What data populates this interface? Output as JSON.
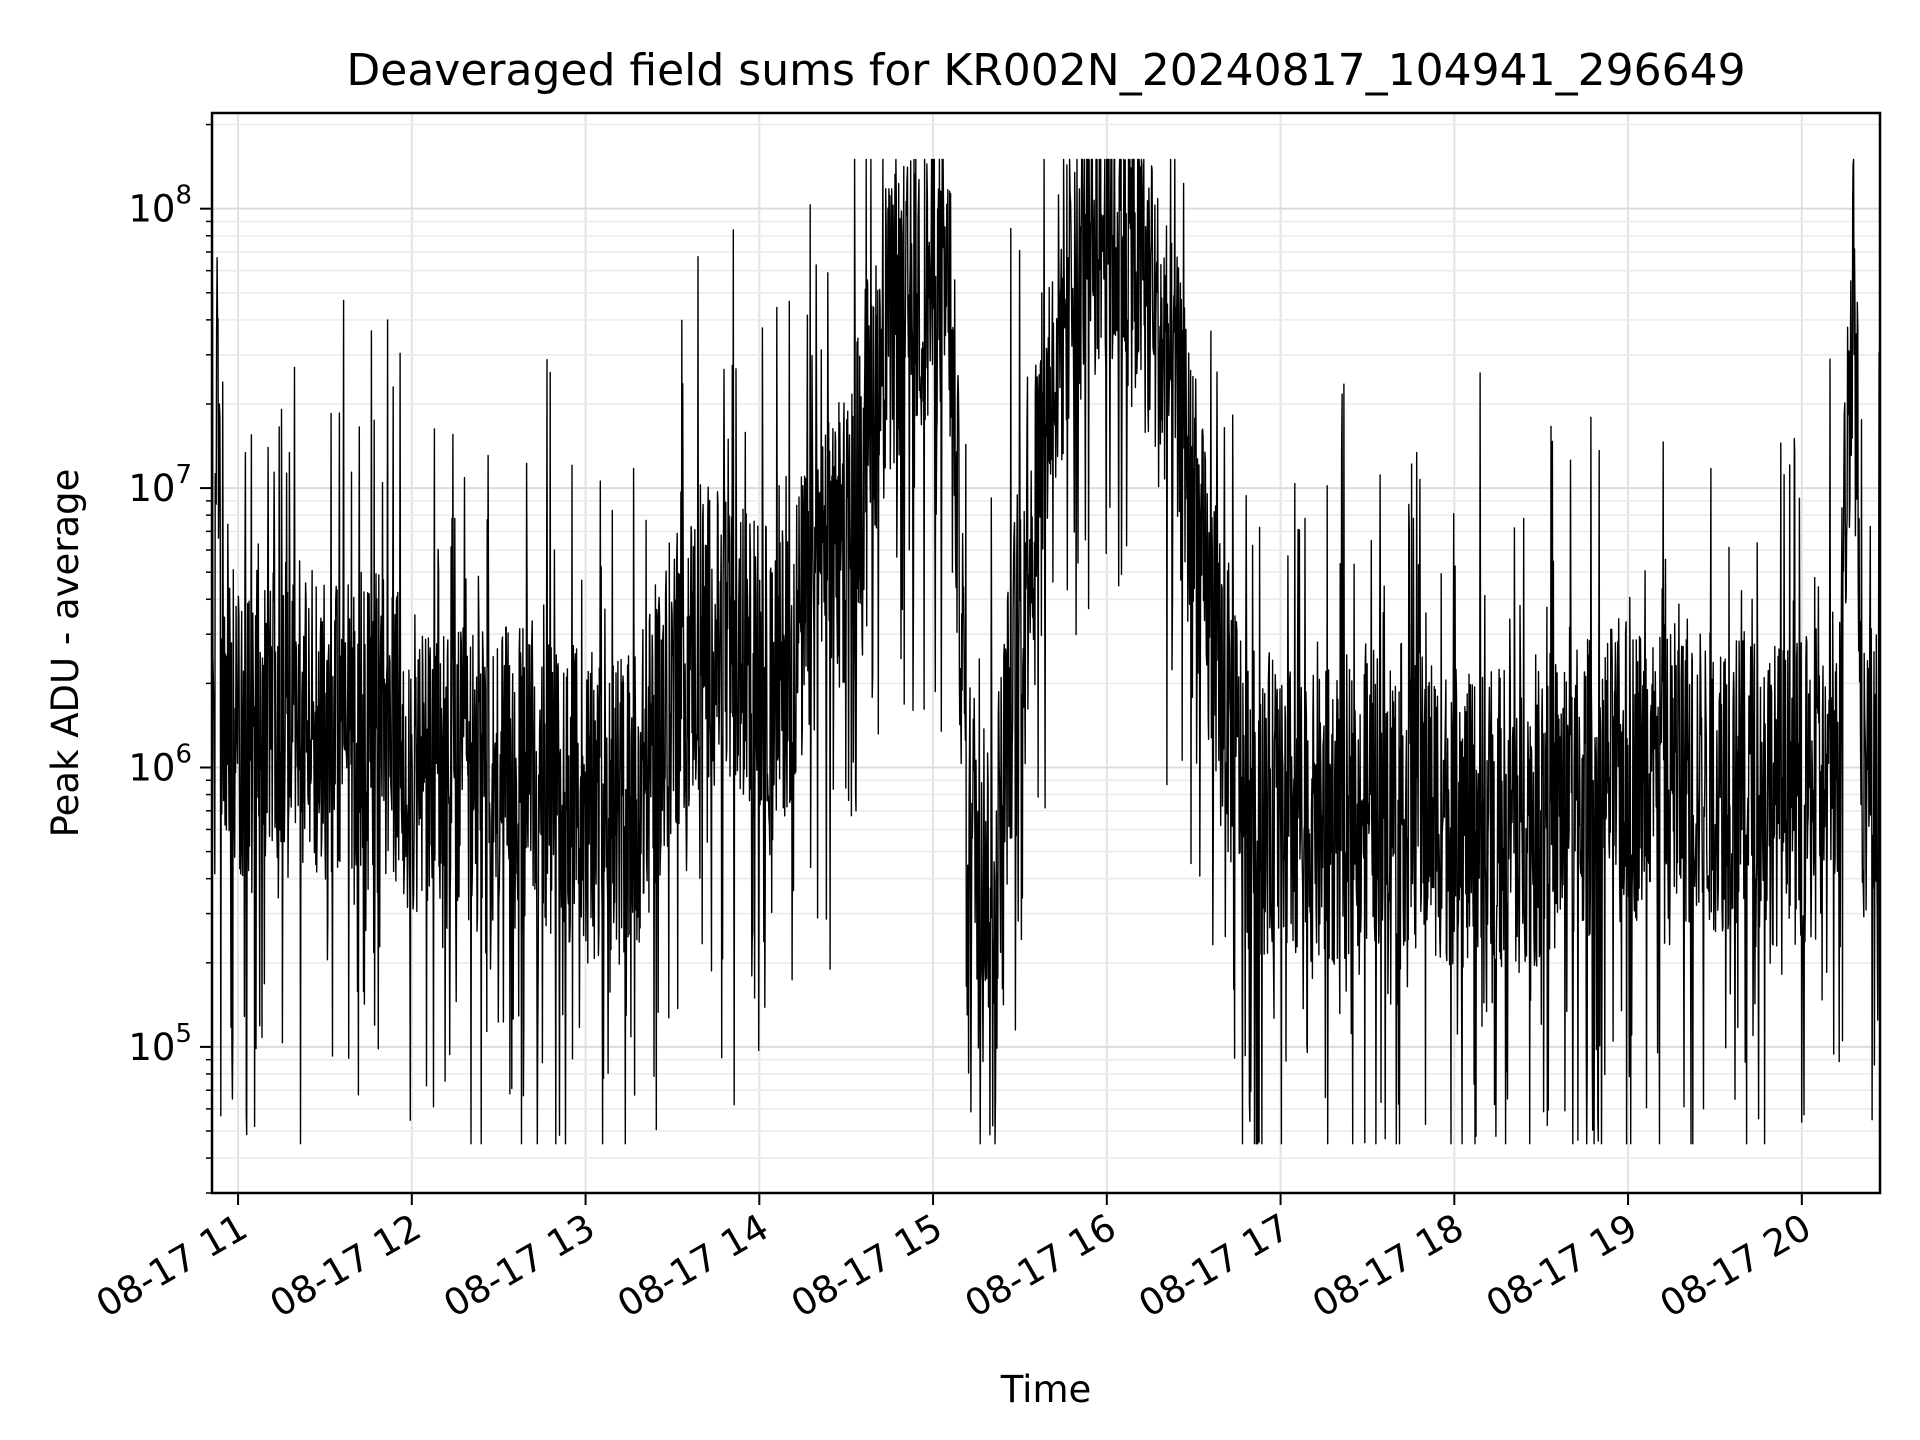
{
  "chart_data": {
    "type": "line",
    "title": "Deaveraged field sums for KR002N_20240817_104941_296649",
    "xlabel": "Time",
    "ylabel": "Peak ADU - average",
    "yscale": "log",
    "ylim": [
      30000,
      220000000
    ],
    "xlim_hours": [
      10.85,
      20.45
    ],
    "grid": true,
    "line_color": "#000000",
    "x_ticks": [
      {
        "hour": 11,
        "label": "08-17 11"
      },
      {
        "hour": 12,
        "label": "08-17 12"
      },
      {
        "hour": 13,
        "label": "08-17 13"
      },
      {
        "hour": 14,
        "label": "08-17 14"
      },
      {
        "hour": 15,
        "label": "08-17 15"
      },
      {
        "hour": 16,
        "label": "08-17 16"
      },
      {
        "hour": 17,
        "label": "08-17 17"
      },
      {
        "hour": 18,
        "label": "08-17 18"
      },
      {
        "hour": 19,
        "label": "08-17 19"
      },
      {
        "hour": 20,
        "label": "08-17 20"
      }
    ],
    "y_ticks": [
      {
        "value": 100000,
        "base": "10",
        "exp": "5"
      },
      {
        "value": 1000000,
        "base": "10",
        "exp": "6"
      },
      {
        "value": 10000000,
        "base": "10",
        "exp": "7"
      },
      {
        "value": 100000000,
        "base": "10",
        "exp": "8"
      }
    ],
    "series": [
      {
        "x_hours": [
          10.85,
          10.88,
          10.9,
          10.95,
          11.0,
          11.2,
          11.5,
          11.8,
          12.0,
          12.3,
          12.6,
          12.9,
          13.1,
          13.3,
          13.5,
          13.7,
          13.9,
          14.1,
          14.3,
          14.5,
          14.7,
          14.8,
          14.9,
          15.0,
          15.1,
          15.2,
          15.35,
          15.5,
          15.7,
          15.85,
          16.0,
          16.2,
          16.4,
          16.6,
          16.8,
          17.0,
          17.2,
          17.5,
          17.8,
          18.1,
          18.4,
          18.7,
          19.0,
          19.3,
          19.6,
          19.9,
          20.2,
          20.3,
          20.35,
          20.45
        ],
        "values": [
          1500000,
          60000000,
          2000000,
          1300000,
          1300000,
          1800000,
          1400000,
          1600000,
          1000000,
          900000,
          900000,
          800000,
          700000,
          800000,
          2000000,
          3000000,
          2500000,
          2000000,
          4000000,
          7000000,
          30000000,
          40000000,
          45000000,
          55000000,
          45000000,
          700000,
          400000,
          4000000,
          30000000,
          80000000,
          90000000,
          60000000,
          20000000,
          3000000,
          800000,
          700000,
          600000,
          800000,
          800000,
          600000,
          700000,
          800000,
          1000000,
          900000,
          900000,
          800000,
          800000,
          80000000,
          1000000,
          1100000
        ]
      }
    ]
  }
}
